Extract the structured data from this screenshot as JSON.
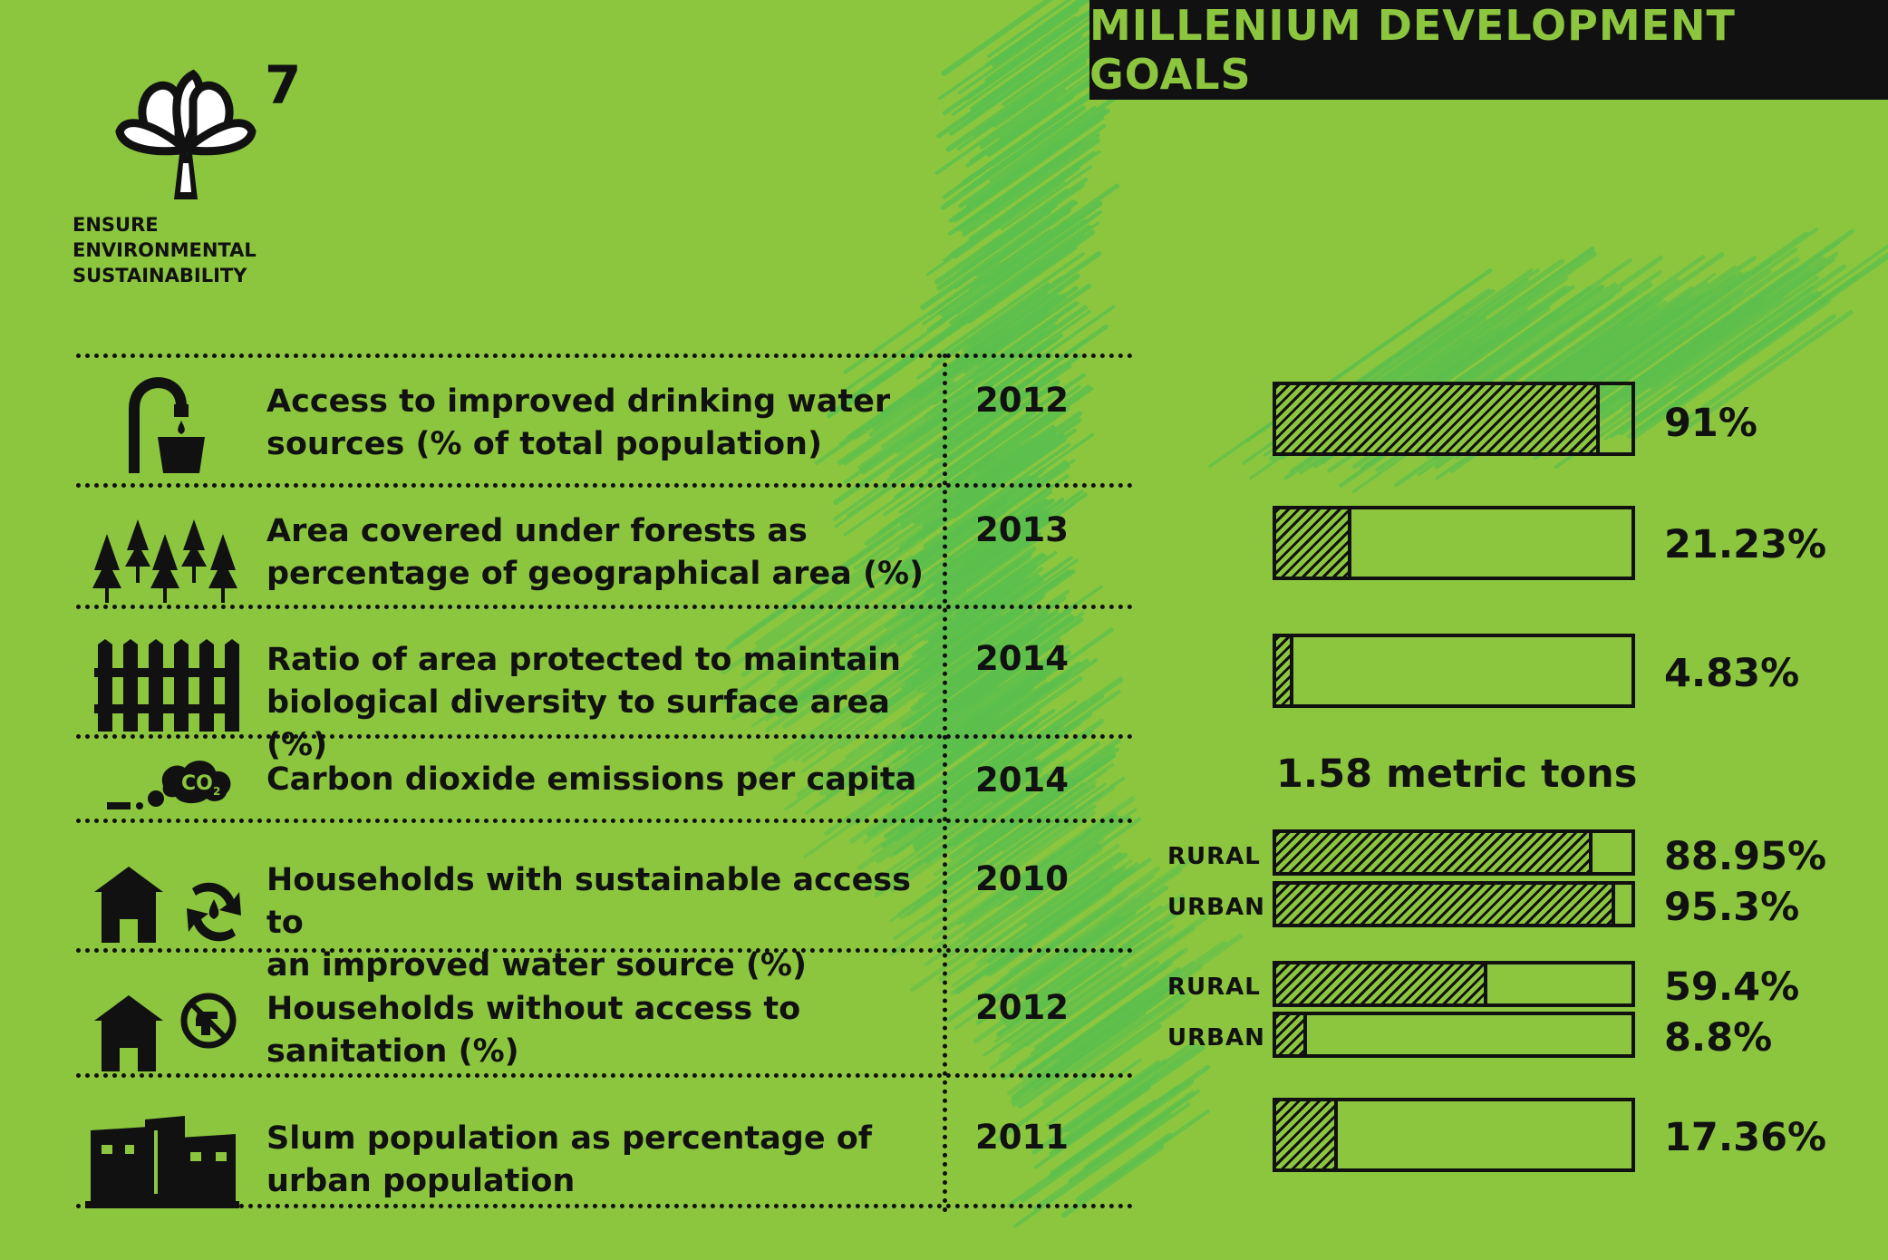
{
  "banner": {
    "title": "MILLENIUM DEVELOPMENT GOALS"
  },
  "goal": {
    "number": "7",
    "lines": [
      "ENSURE",
      "ENVIRONMENTAL",
      "SUSTAINABILITY"
    ]
  },
  "rows": [
    {
      "icon": "water-tap-icon",
      "lines": [
        "Access to improved drinking water",
        "sources (% of total population)"
      ],
      "year": "2012",
      "bars": [
        {
          "label": "",
          "value_text": "91%",
          "fraction": 0.91
        }
      ]
    },
    {
      "icon": "trees-icon",
      "lines": [
        "Area covered under forests as",
        "percentage of geographical area (%)"
      ],
      "year": "2013",
      "bars": [
        {
          "label": "",
          "value_text": "21.23%",
          "fraction": 0.2123
        }
      ]
    },
    {
      "icon": "fence-icon",
      "lines": [
        "Ratio of area protected to maintain",
        "biological diversity to surface area (%)"
      ],
      "year": "2014",
      "bars": [
        {
          "label": "",
          "value_text": "4.83%",
          "fraction": 0.0483
        }
      ]
    },
    {
      "icon": "co2-cloud-icon",
      "lines": [
        "Carbon dioxide emissions per capita"
      ],
      "year": "2014",
      "value_text": "1.58 metric tons"
    },
    {
      "icon": "house-water-icon",
      "lines": [
        "Households with sustainable access to",
        "an improved water source (%)"
      ],
      "year": "2010",
      "bars": [
        {
          "label": "RURAL",
          "value_text": "88.95%",
          "fraction": 0.8895
        },
        {
          "label": "URBAN",
          "value_text": "95.3%",
          "fraction": 0.953
        }
      ]
    },
    {
      "icon": "house-no-toilet-icon",
      "lines": [
        "Households without access to",
        "sanitation (%)"
      ],
      "year": "2012",
      "bars": [
        {
          "label": "RURAL",
          "value_text": "59.4%",
          "fraction": 0.594
        },
        {
          "label": "URBAN",
          "value_text": "8.8%",
          "fraction": 0.088
        }
      ]
    },
    {
      "icon": "slum-houses-icon",
      "lines": [
        "Slum population as percentage of",
        "urban population"
      ],
      "year": "2011",
      "bars": [
        {
          "label": "",
          "value_text": "17.36%",
          "fraction": 0.1736
        }
      ]
    }
  ],
  "colors": {
    "background": "#8cc63f",
    "scribble": "#5cbf4c",
    "ink": "#111111"
  }
}
